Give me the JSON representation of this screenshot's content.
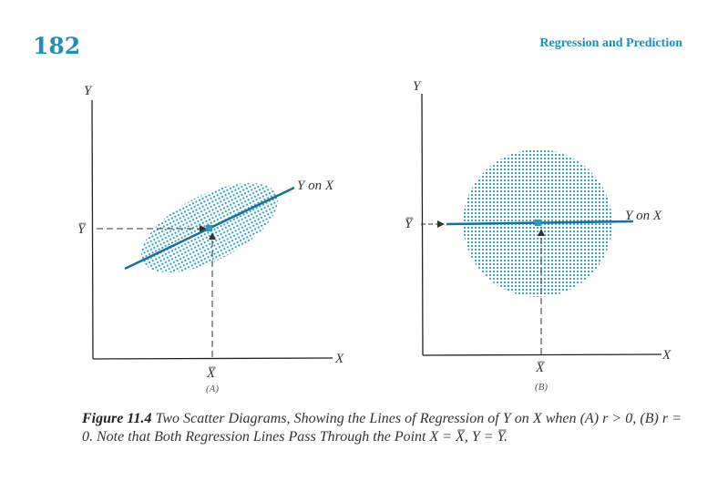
{
  "page": {
    "page_number": "182",
    "running_head": "Regression and Prediction"
  },
  "figure": {
    "panel_a": {
      "y_axis_label": "Y",
      "x_axis_label": "X",
      "y_mean_label": "Y̅",
      "x_mean_label": "X̅",
      "line_label": "Y on X",
      "panel_label": "(A)"
    },
    "panel_b": {
      "y_axis_label": "Y",
      "x_axis_label": "X",
      "y_mean_label": "Y̅",
      "x_mean_label": "X̅",
      "line_label": "Y on X",
      "panel_label": "(B)"
    },
    "colors": {
      "scatter": "#2a9cc4",
      "regression_line": "#1a6e9c",
      "arrow": "#333333"
    }
  },
  "caption": {
    "label": "Figure 11.4",
    "text": "Two Scatter Diagrams, Showing the Lines of Regression of Y on X when (A) r > 0, (B) r = 0. Note that Both Regression Lines Pass Through the Point X = X̅, Y = Y̅."
  }
}
